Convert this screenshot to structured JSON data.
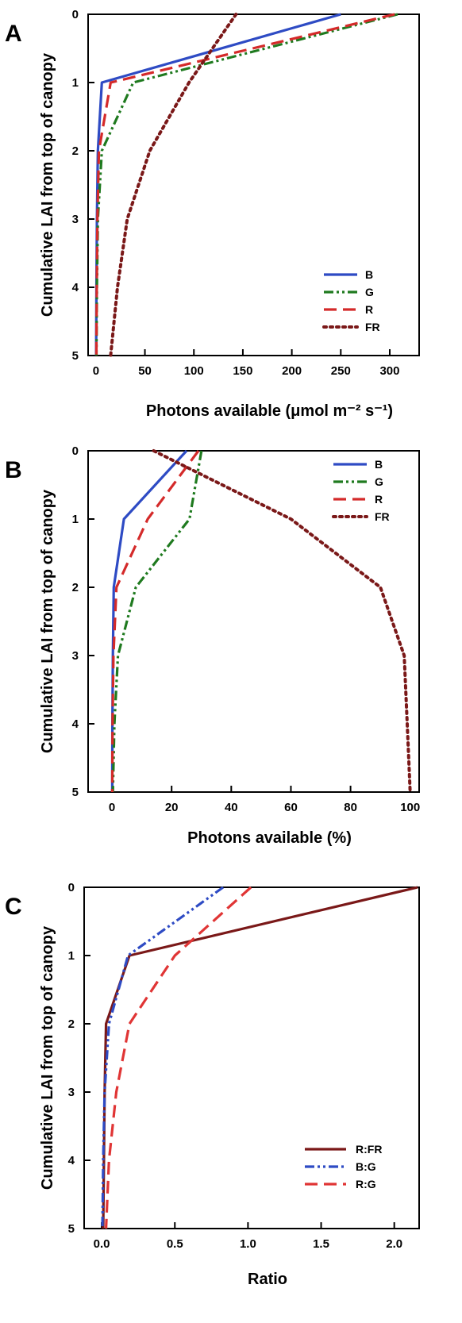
{
  "chart_data": [
    {
      "panel": "A",
      "type": "line",
      "xlabel": "Photons available (μmol m⁻² s⁻¹)",
      "ylabel": "Cumulative LAI from top of canopy",
      "xlim": [
        -8,
        330
      ],
      "ylim": [
        5,
        0
      ],
      "xticks": [
        0,
        50,
        100,
        150,
        200,
        250,
        300
      ],
      "yticks": [
        0,
        1,
        2,
        3,
        4,
        5
      ],
      "legend_position": "bottom-right",
      "grid": false,
      "series": [
        {
          "name": "B",
          "color": "#2e4bc4",
          "dash": "solid",
          "x": [
            250,
            6,
            2,
            1,
            0.5,
            0.2
          ],
          "y": [
            0,
            1,
            2,
            3,
            4,
            5
          ]
        },
        {
          "name": "G",
          "color": "#1f7a1f",
          "dash": "dashdotdot",
          "x": [
            308,
            38,
            6,
            2,
            1,
            0.5
          ],
          "y": [
            0,
            1,
            2,
            3,
            4,
            5
          ]
        },
        {
          "name": "R",
          "color": "#d42a2a",
          "dash": "dashed",
          "x": [
            305,
            15,
            3,
            1.5,
            0.8,
            0.4
          ],
          "y": [
            0,
            1,
            2,
            3,
            4,
            5
          ]
        },
        {
          "name": "FR",
          "color": "#7a1818",
          "dash": "dotted",
          "x": [
            143,
            95,
            55,
            32,
            22,
            15
          ],
          "y": [
            0,
            1,
            2,
            3,
            4,
            5
          ]
        }
      ]
    },
    {
      "panel": "B",
      "type": "line",
      "xlabel": "Photons available (%)",
      "ylabel": "Cumulative LAI from top of canopy",
      "xlim": [
        -8,
        103
      ],
      "ylim": [
        5,
        0
      ],
      "xticks": [
        0,
        20,
        40,
        60,
        80,
        100
      ],
      "yticks": [
        0,
        1,
        2,
        3,
        4,
        5
      ],
      "legend_position": "top-right",
      "grid": false,
      "series": [
        {
          "name": "B",
          "color": "#2e4bc4",
          "dash": "solid",
          "x": [
            25,
            4,
            0.6,
            0.3,
            0.15,
            0.1
          ],
          "y": [
            0,
            1,
            2,
            3,
            4,
            5
          ]
        },
        {
          "name": "G",
          "color": "#1f7a1f",
          "dash": "dashdotdot",
          "x": [
            30,
            26,
            8,
            2,
            0.8,
            0.3
          ],
          "y": [
            0,
            1,
            2,
            3,
            4,
            5
          ]
        },
        {
          "name": "R",
          "color": "#d42a2a",
          "dash": "dashed",
          "x": [
            29,
            12,
            1.5,
            0.5,
            0.2,
            0.1
          ],
          "y": [
            0,
            1,
            2,
            3,
            4,
            5
          ]
        },
        {
          "name": "FR",
          "color": "#7a1818",
          "dash": "dotted",
          "x": [
            14,
            60,
            90,
            98,
            99,
            100
          ],
          "y": [
            0,
            1,
            2,
            3,
            4,
            5
          ]
        }
      ]
    },
    {
      "panel": "C",
      "type": "line",
      "xlabel": "Ratio",
      "ylabel": "Cumulative LAI from top of canopy",
      "xlim": [
        -0.12,
        2.17
      ],
      "ylim": [
        5,
        0
      ],
      "xticks": [
        0.0,
        0.5,
        1.0,
        1.5,
        2.0
      ],
      "xtick_labels": [
        "0.0",
        "0.5",
        "1.0",
        "1.5",
        "2.0"
      ],
      "yticks": [
        0,
        1,
        2,
        3,
        4,
        5
      ],
      "legend_position": "bottom-right",
      "grid": false,
      "series": [
        {
          "name": "R:FR",
          "color": "#7a1818",
          "dash": "solid",
          "x": [
            2.16,
            0.19,
            0.03,
            0.02,
            0.015,
            0.01
          ],
          "y": [
            0,
            1,
            2,
            3,
            4,
            5
          ]
        },
        {
          "name": "B:G",
          "color": "#2e4bc4",
          "dash": "dashdotdot",
          "x": [
            0.83,
            0.18,
            0.05,
            0.02,
            0.01,
            0.005
          ],
          "y": [
            0,
            1,
            2,
            3,
            4,
            5
          ]
        },
        {
          "name": "R:G",
          "color": "#e03535",
          "dash": "dashed",
          "x": [
            1.02,
            0.5,
            0.19,
            0.1,
            0.05,
            0.03
          ],
          "y": [
            0,
            1,
            2,
            3,
            4,
            5
          ]
        }
      ]
    }
  ]
}
